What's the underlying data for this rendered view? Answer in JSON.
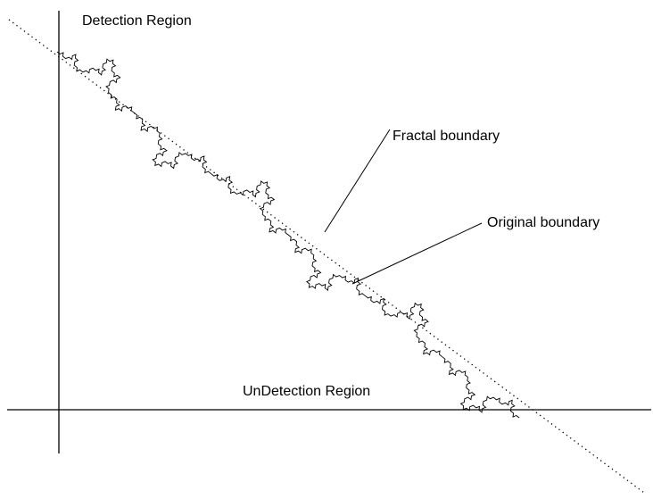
{
  "labels": {
    "detection_region": "Detection Region",
    "undetection_region": "UnDetection Region",
    "fractal_boundary": "Fractal boundary",
    "original_boundary": "Original boundary"
  }
}
